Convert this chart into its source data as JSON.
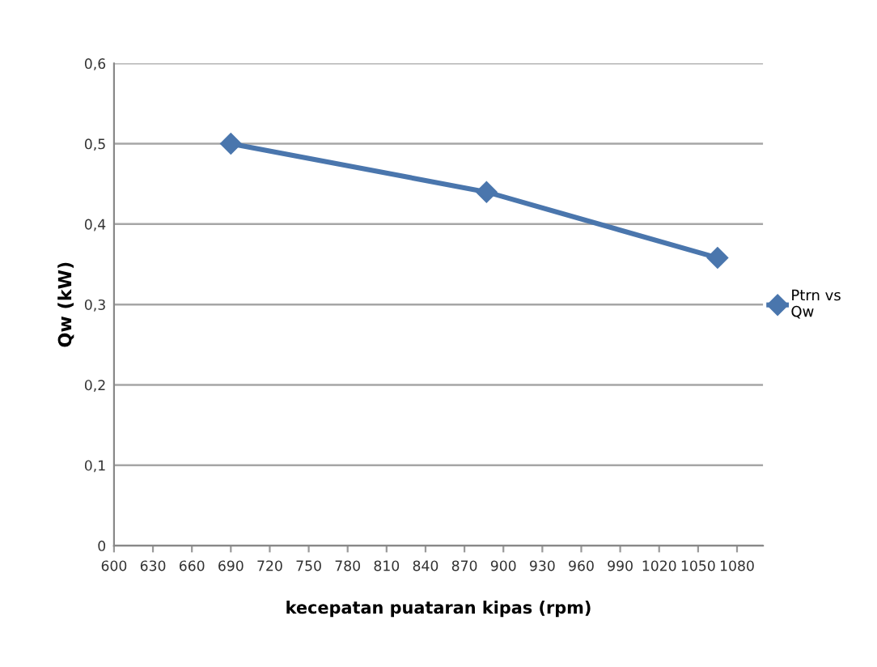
{
  "chart_data": {
    "type": "line",
    "xlabel": "kecepatan puataran kipas (rpm)",
    "ylabel": "Qw (kW)",
    "x": [
      690,
      887,
      1065
    ],
    "series": [
      {
        "name": "Ptrn vs\nQw",
        "color": "#4a76ad",
        "values": [
          0.5,
          0.44,
          0.358
        ]
      }
    ],
    "xlim": [
      600,
      1100
    ],
    "xticks": [
      600,
      630,
      660,
      690,
      720,
      750,
      780,
      810,
      840,
      870,
      900,
      930,
      960,
      990,
      1020,
      1050,
      1080
    ],
    "ylim": [
      0,
      0.6
    ],
    "yticks": [
      {
        "value": 0,
        "label": "0"
      },
      {
        "value": 0.1,
        "label": "0,1"
      },
      {
        "value": 0.2,
        "label": "0,2"
      },
      {
        "value": 0.3,
        "label": "0,3"
      },
      {
        "value": 0.4,
        "label": "0,4"
      },
      {
        "value": 0.5,
        "label": "0,5"
      },
      {
        "value": 0.6,
        "label": "0,6"
      }
    ],
    "grid": "y",
    "legend": "right",
    "marker": "diamond",
    "line_style": "solid"
  }
}
